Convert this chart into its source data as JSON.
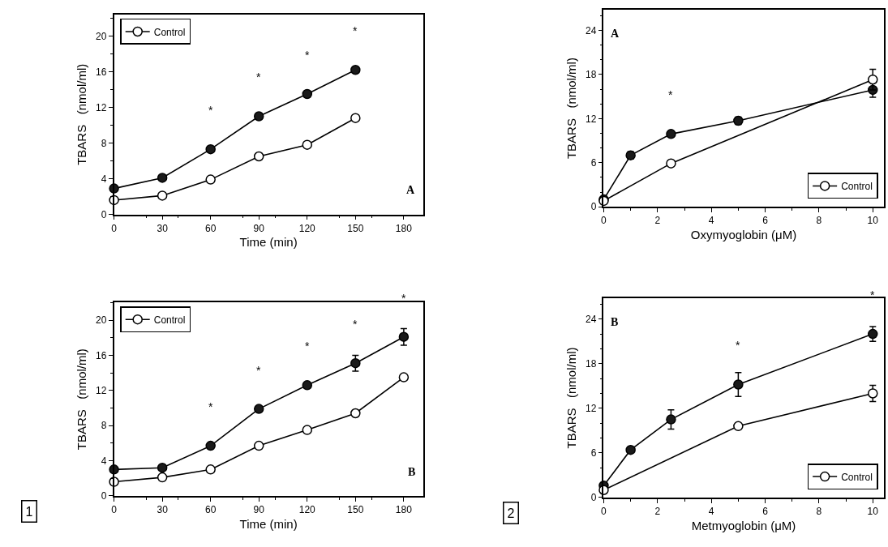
{
  "chart_data": [
    {
      "type": "line",
      "xlabel": "Time (min)",
      "ylabel": "TBARS   (nmol/ml)",
      "xlim": [
        0,
        192
      ],
      "ylim": [
        0,
        22.4
      ],
      "xticks": [
        0,
        30,
        60,
        90,
        120,
        150,
        180
      ],
      "yticks": [
        0,
        4,
        8,
        12,
        16,
        20
      ],
      "marker": "circle",
      "legend": "top left",
      "x": [
        0,
        30,
        60,
        90,
        120,
        150
      ],
      "series": [
        {
          "name": "Control",
          "color": "#ffffff",
          "values": [
            1.6,
            2.1,
            3.9,
            6.5,
            7.8,
            10.8
          ]
        },
        {
          "color": "#1a1a1a",
          "values": [
            2.9,
            4.1,
            7.3,
            11.0,
            13.5,
            16.2
          ]
        }
      ],
      "annotations": [
        "A",
        {
          "text": "*",
          "x": 60,
          "y": 7.3
        },
        {
          "text": "*",
          "x": 90,
          "y": 11.0
        },
        {
          "text": "*",
          "x": 120,
          "y": 13.5
        },
        {
          "text": "*",
          "x": 150,
          "y": 16.2
        }
      ]
    },
    {
      "type": "line",
      "xlabel": "Time (min)",
      "ylabel": "TBARS   (nmol/ml)",
      "xlim": [
        0,
        192
      ],
      "ylim": [
        0,
        22
      ],
      "xticks": [
        0,
        30,
        60,
        90,
        120,
        150,
        180
      ],
      "yticks": [
        0,
        4,
        8,
        12,
        16,
        20
      ],
      "marker": "circle",
      "legend": "top left",
      "x": [
        0,
        30,
        60,
        90,
        120,
        150,
        180
      ],
      "series": [
        {
          "color": "#1a1a1a",
          "values": [
            3.0,
            3.2,
            5.7,
            9.9,
            12.6,
            15.1,
            18.1
          ],
          "errors": [
            null,
            null,
            null,
            null,
            null,
            0.9,
            0.95
          ]
        },
        {
          "name": "Control",
          "color": "#ffffff",
          "values": [
            1.6,
            2.1,
            3.0,
            5.7,
            7.5,
            9.4,
            13.5
          ]
        }
      ],
      "title": "1",
      "annotations": [
        "B",
        {
          "text": "*",
          "x": 60,
          "y": 5.7
        },
        {
          "text": "*",
          "x": 90,
          "y": 9.9
        },
        {
          "text": "*",
          "x": 120,
          "y": 12.6
        },
        {
          "text": "*",
          "x": 150,
          "y": 15.1
        },
        {
          "text": "*",
          "x": 180,
          "y": 18.1
        }
      ]
    },
    {
      "type": "line",
      "xlabel": "Oxymyoglobin (μM)",
      "ylabel": "TBARS   (nmol/ml)",
      "xlim": [
        0,
        10.4
      ],
      "ylim": [
        0,
        26.8
      ],
      "xticks": [
        0,
        2,
        4,
        6,
        8,
        10
      ],
      "yticks": [
        0,
        6,
        12,
        18,
        24
      ],
      "marker": "circle",
      "legend": "bottom right",
      "series": [
        {
          "color": "#1a1a1a",
          "x": [
            0,
            1,
            2.5,
            5,
            10
          ],
          "values": [
            1.0,
            7.0,
            9.9,
            11.7,
            15.9
          ],
          "errors": [
            null,
            0.5,
            null,
            0.5,
            1.0
          ]
        },
        {
          "name": "Control",
          "color": "#ffffff",
          "x": [
            0,
            2.5,
            10
          ],
          "values": [
            0.8,
            5.9,
            17.3
          ],
          "errors": [
            null,
            null,
            1.4
          ]
        }
      ],
      "annotations": [
        "A",
        {
          "text": "*",
          "x": 2.5,
          "y": 9.9
        }
      ]
    },
    {
      "type": "line",
      "xlabel": "Metmyoglobin (μM)",
      "ylabel": "TBARS   (nmol/ml)",
      "xlim": [
        0,
        10.4
      ],
      "ylim": [
        0,
        26.8
      ],
      "xticks": [
        0,
        2,
        4,
        6,
        8,
        10
      ],
      "yticks": [
        0,
        6,
        12,
        18,
        24
      ],
      "marker": "circle",
      "legend": "bottom right",
      "series": [
        {
          "color": "#1a1a1a",
          "x": [
            0,
            1,
            2.5,
            5,
            10
          ],
          "values": [
            1.6,
            6.4,
            10.5,
            15.2,
            22.0
          ],
          "errors": [
            null,
            null,
            1.3,
            1.6,
            1.0
          ]
        },
        {
          "name": "Control",
          "color": "#ffffff",
          "x": [
            0,
            5,
            10
          ],
          "values": [
            1.0,
            9.6,
            14.0
          ],
          "errors": [
            null,
            null,
            1.1
          ]
        }
      ],
      "title": "2",
      "annotations": [
        "B",
        {
          "text": "*",
          "x": 5,
          "y": 15.2
        },
        {
          "text": "*",
          "x": 10,
          "y": 22.0
        }
      ]
    }
  ]
}
